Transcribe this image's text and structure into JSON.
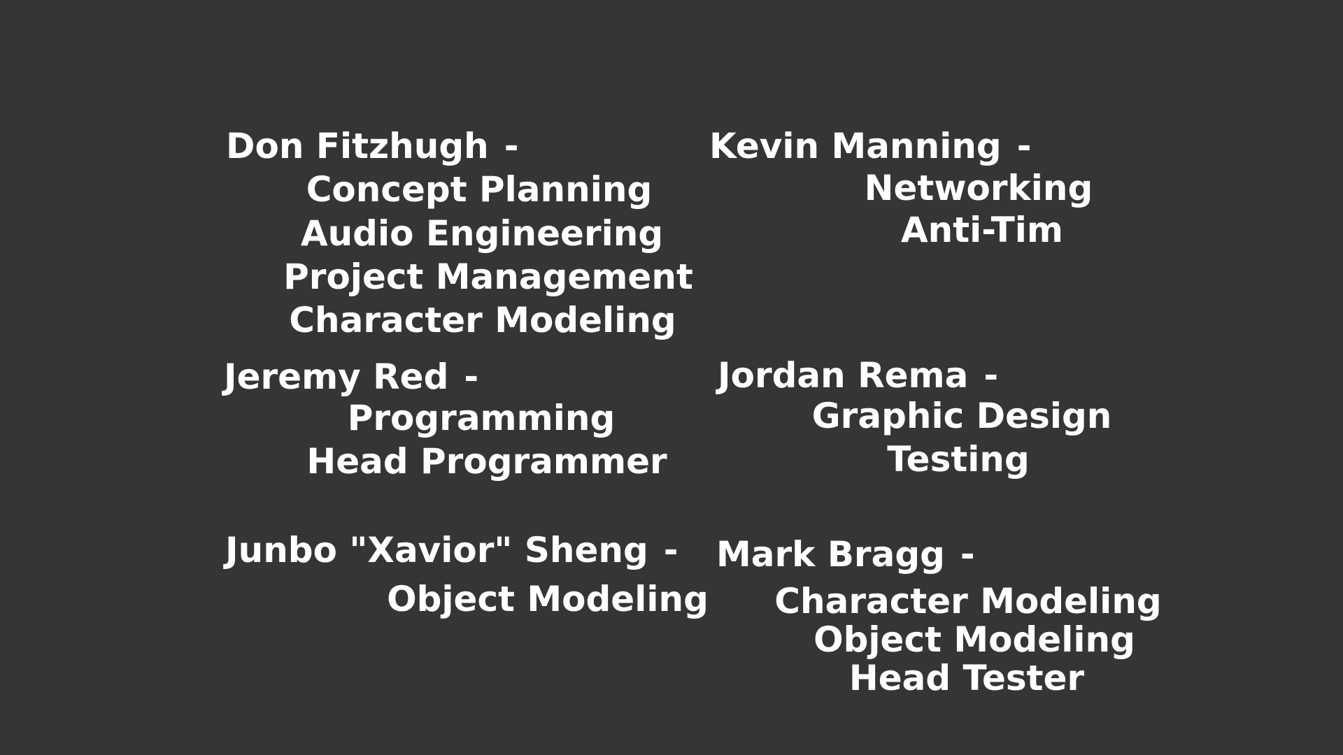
{
  "credits": [
    {
      "name": "Don Fitzhugh",
      "separator": "-",
      "roles": [
        "Concept Planning",
        "Audio Engineering",
        "Project Management",
        "Character Modeling"
      ]
    },
    {
      "name": "Kevin Manning",
      "separator": "-",
      "roles": [
        "Networking",
        "Anti-Tim"
      ]
    },
    {
      "name": "Jeremy Red",
      "separator": "-",
      "roles": [
        "Programming",
        "Head Programmer"
      ]
    },
    {
      "name": "Jordan Rema",
      "separator": "-",
      "roles": [
        "Graphic Design",
        "Testing"
      ]
    },
    {
      "name": "Junbo \"Xavior\" Sheng",
      "separator": "-",
      "roles": [
        "Object Modeling"
      ]
    },
    {
      "name": "Mark Bragg",
      "separator": "-",
      "roles": [
        "Character Modeling",
        "Object Modeling",
        "Head Tester"
      ]
    }
  ]
}
